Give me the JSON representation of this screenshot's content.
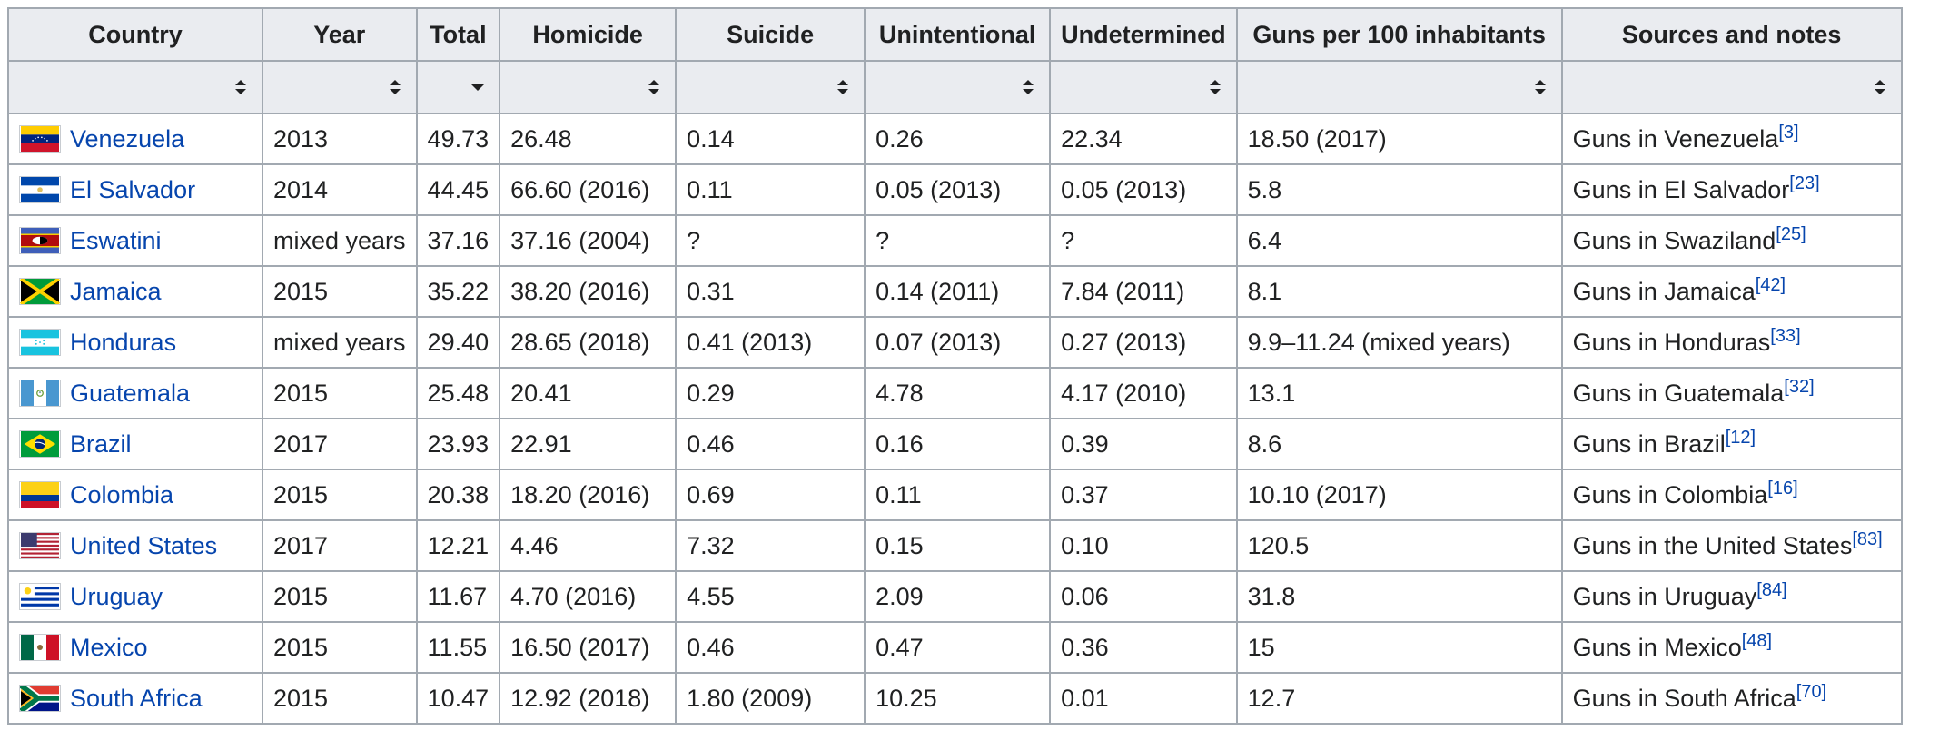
{
  "table": {
    "headers": [
      "Country",
      "Year",
      "Total",
      "Homicide",
      "Suicide",
      "Unintentional",
      "Undetermined",
      "Guns per 100 inhabitants",
      "Sources and notes"
    ],
    "sort_states": [
      "both",
      "both",
      "desc",
      "both",
      "both",
      "both",
      "both",
      "both",
      "both"
    ],
    "rows": [
      {
        "country": "Venezuela",
        "flag": "venezuela-flag-icon",
        "year": "2013",
        "total": "49.73",
        "homicide": "26.48",
        "suicide": "0.14",
        "unintentional": "0.26",
        "undetermined": "22.34",
        "guns": "18.50 (2017)",
        "source": "Guns in Venezuela",
        "ref": "[3]"
      },
      {
        "country": "El Salvador",
        "flag": "el-salvador-flag-icon",
        "year": "2014",
        "total": "44.45",
        "homicide": "66.60 (2016)",
        "suicide": "0.11",
        "unintentional": "0.05 (2013)",
        "undetermined": "0.05 (2013)",
        "guns": "5.8",
        "source": "Guns in El Salvador",
        "ref": "[23]"
      },
      {
        "country": "Eswatini",
        "flag": "eswatini-flag-icon",
        "year": "mixed years",
        "total": "37.16",
        "homicide": "37.16 (2004)",
        "suicide": "?",
        "unintentional": "?",
        "undetermined": "?",
        "guns": "6.4",
        "source": "Guns in Swaziland",
        "ref": "[25]"
      },
      {
        "country": "Jamaica",
        "flag": "jamaica-flag-icon",
        "year": "2015",
        "total": "35.22",
        "homicide": "38.20 (2016)",
        "suicide": "0.31",
        "unintentional": "0.14 (2011)",
        "undetermined": "7.84 (2011)",
        "guns": "8.1",
        "source": "Guns in Jamaica",
        "ref": "[42]"
      },
      {
        "country": "Honduras",
        "flag": "honduras-flag-icon",
        "year": "mixed years",
        "total": "29.40",
        "homicide": "28.65 (2018)",
        "suicide": "0.41 (2013)",
        "unintentional": "0.07 (2013)",
        "undetermined": "0.27 (2013)",
        "guns": "9.9–11.24 (mixed years)",
        "source": "Guns in Honduras",
        "ref": "[33]"
      },
      {
        "country": "Guatemala",
        "flag": "guatemala-flag-icon",
        "year": "2015",
        "total": "25.48",
        "homicide": "20.41",
        "suicide": "0.29",
        "unintentional": "4.78",
        "undetermined": "4.17 (2010)",
        "guns": "13.1",
        "source": "Guns in Guatemala",
        "ref": "[32]"
      },
      {
        "country": "Brazil",
        "flag": "brazil-flag-icon",
        "year": "2017",
        "total": "23.93",
        "homicide": "22.91",
        "suicide": "0.46",
        "unintentional": "0.16",
        "undetermined": "0.39",
        "guns": "8.6",
        "source": "Guns in Brazil",
        "ref": "[12]"
      },
      {
        "country": "Colombia",
        "flag": "colombia-flag-icon",
        "year": "2015",
        "total": "20.38",
        "homicide": "18.20 (2016)",
        "suicide": "0.69",
        "unintentional": "0.11",
        "undetermined": "0.37",
        "guns": "10.10 (2017)",
        "source": "Guns in Colombia",
        "ref": "[16]"
      },
      {
        "country": "United States",
        "flag": "united-states-flag-icon",
        "year": "2017",
        "total": "12.21",
        "homicide": "4.46",
        "suicide": "7.32",
        "unintentional": "0.15",
        "undetermined": "0.10",
        "guns": "120.5",
        "source": "Guns in the United States",
        "ref": "[83]"
      },
      {
        "country": "Uruguay",
        "flag": "uruguay-flag-icon",
        "year": "2015",
        "total": "11.67",
        "homicide": "4.70 (2016)",
        "suicide": "4.55",
        "unintentional": "2.09",
        "undetermined": "0.06",
        "guns": "31.8",
        "source": "Guns in Uruguay",
        "ref": "[84]"
      },
      {
        "country": "Mexico",
        "flag": "mexico-flag-icon",
        "year": "2015",
        "total": "11.55",
        "homicide": "16.50 (2017)",
        "suicide": "0.46",
        "unintentional": "0.47",
        "undetermined": "0.36",
        "guns": "15",
        "source": "Guns in Mexico",
        "ref": "[48]"
      },
      {
        "country": "South Africa",
        "flag": "south-africa-flag-icon",
        "year": "2015",
        "total": "10.47",
        "homicide": "12.92 (2018)",
        "suicide": "1.80 (2009)",
        "unintentional": "10.25",
        "undetermined": "0.01",
        "guns": "12.7",
        "source": "Guns in South Africa",
        "ref": "[70]"
      }
    ]
  },
  "colors": {
    "link": "#0645ad",
    "header_bg": "#eaecf0",
    "border": "#a2a9b1",
    "text": "#202122"
  }
}
